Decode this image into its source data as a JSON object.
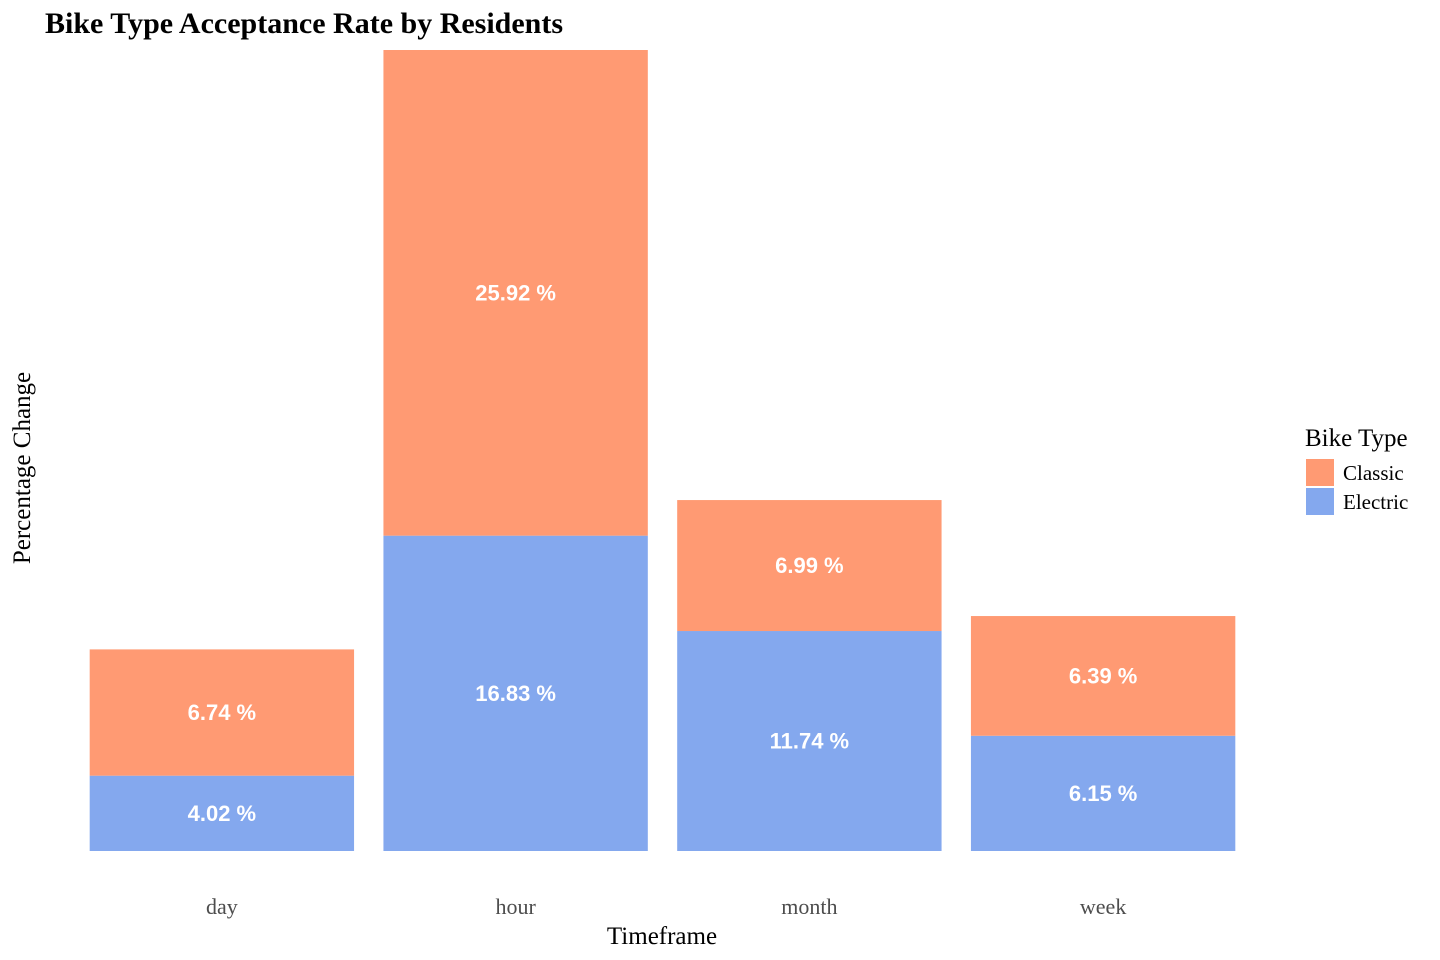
{
  "chart_data": {
    "type": "bar",
    "stacked": true,
    "title": "Bike Type Acceptance Rate by Residents",
    "xlabel": "Timeframe",
    "ylabel": "Percentage Change",
    "categories": [
      "day",
      "hour",
      "month",
      "week"
    ],
    "series": [
      {
        "name": "Electric",
        "values": [
          4.02,
          16.83,
          11.74,
          6.15
        ],
        "labels": [
          "4.02 %",
          "16.83 %",
          "11.74 %",
          "6.15 %"
        ]
      },
      {
        "name": "Classic",
        "values": [
          6.74,
          25.92,
          6.99,
          6.39
        ],
        "labels": [
          "6.74 %",
          "25.92 %",
          "6.99 %",
          "6.39 %"
        ]
      }
    ],
    "ylim": [
      0,
      42.75
    ],
    "grid": false,
    "legend": {
      "title": "Bike Type",
      "position": "right",
      "entries": [
        "Classic",
        "Electric"
      ]
    },
    "colors": {
      "Classic": "#FF9A73",
      "Electric": "#84A8EE",
      "label_text": "#FFFFFF",
      "axis_text": "#4D4D4D"
    }
  }
}
